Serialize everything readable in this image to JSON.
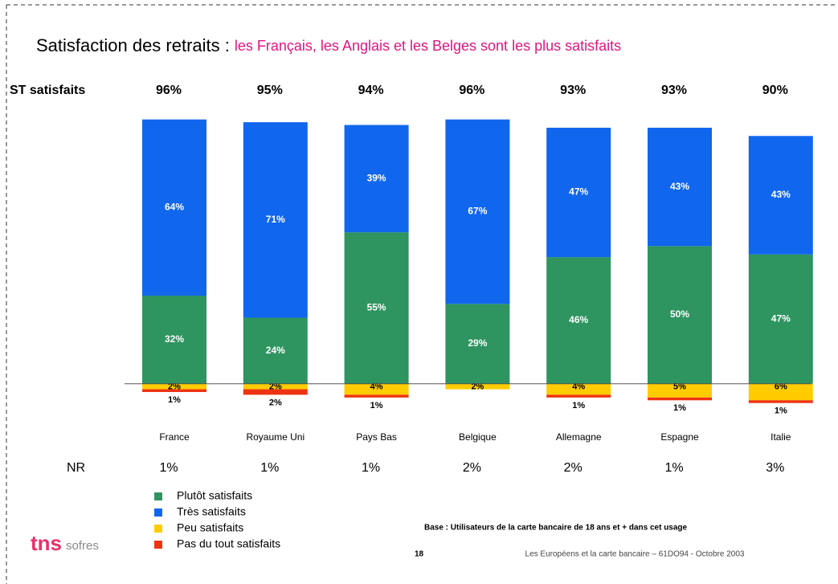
{
  "chart_data": {
    "type": "diverging_stacked_bar",
    "title": "Satisfaction des retraits :",
    "subtitle": "les Français, les Anglais et les Belges sont les plus satisfaits",
    "categories": [
      "France",
      "Royaume Uni",
      "Pays Bas",
      "Belgique",
      "Allemagne",
      "Espagne",
      "Italie"
    ],
    "ylim": [
      -10,
      100
    ],
    "series": [
      {
        "name": "Plutôt satisfaits",
        "color": "#2e9460",
        "stack": "up",
        "values": [
          32,
          24,
          55,
          29,
          46,
          50,
          47
        ],
        "value_labels": [
          "32%",
          "24%",
          "55%",
          "29%",
          "46%",
          "50%",
          "47%"
        ]
      },
      {
        "name": "Très satisfaits",
        "color": "#1166ee",
        "stack": "up",
        "values": [
          64,
          71,
          39,
          67,
          47,
          43,
          43
        ],
        "value_labels": [
          "64%",
          "71%",
          "39%",
          "67%",
          "47%",
          "43%",
          "43%"
        ]
      },
      {
        "name": "Peu satisfaits",
        "color": "#ffcc00",
        "stack": "down",
        "values": [
          2,
          2,
          4,
          2,
          4,
          5,
          6
        ],
        "value_labels": [
          "2%",
          "2%",
          "4%",
          "2%",
          "4%",
          "5%",
          "6%"
        ]
      },
      {
        "name": "Pas du tout satisfaits",
        "color": "#ee3311",
        "stack": "down",
        "values": [
          1,
          2,
          1,
          null,
          1,
          1,
          1
        ],
        "value_labels": [
          "1%",
          "2%",
          "1%",
          null,
          "1%",
          "1%",
          "1%"
        ]
      }
    ],
    "totals_row": {
      "label": "ST satisfaits",
      "value_labels": [
        "96%",
        "95%",
        "94%",
        "96%",
        "93%",
        "93%",
        "90%"
      ]
    },
    "nr_row": {
      "label": "NR",
      "value_labels": [
        "1%",
        "1%",
        "1%",
        "2%",
        "2%",
        "1%",
        "3%"
      ]
    },
    "base_note": "Base : Utilisateurs de la carte bancaire de 18 ans et + dans cet usage",
    "page_number": "18",
    "footer": "Les Européens et la carte bancaire – 61DO94 - Octobre 2003",
    "logo": {
      "main": "tns",
      "sub": "sofres"
    }
  }
}
